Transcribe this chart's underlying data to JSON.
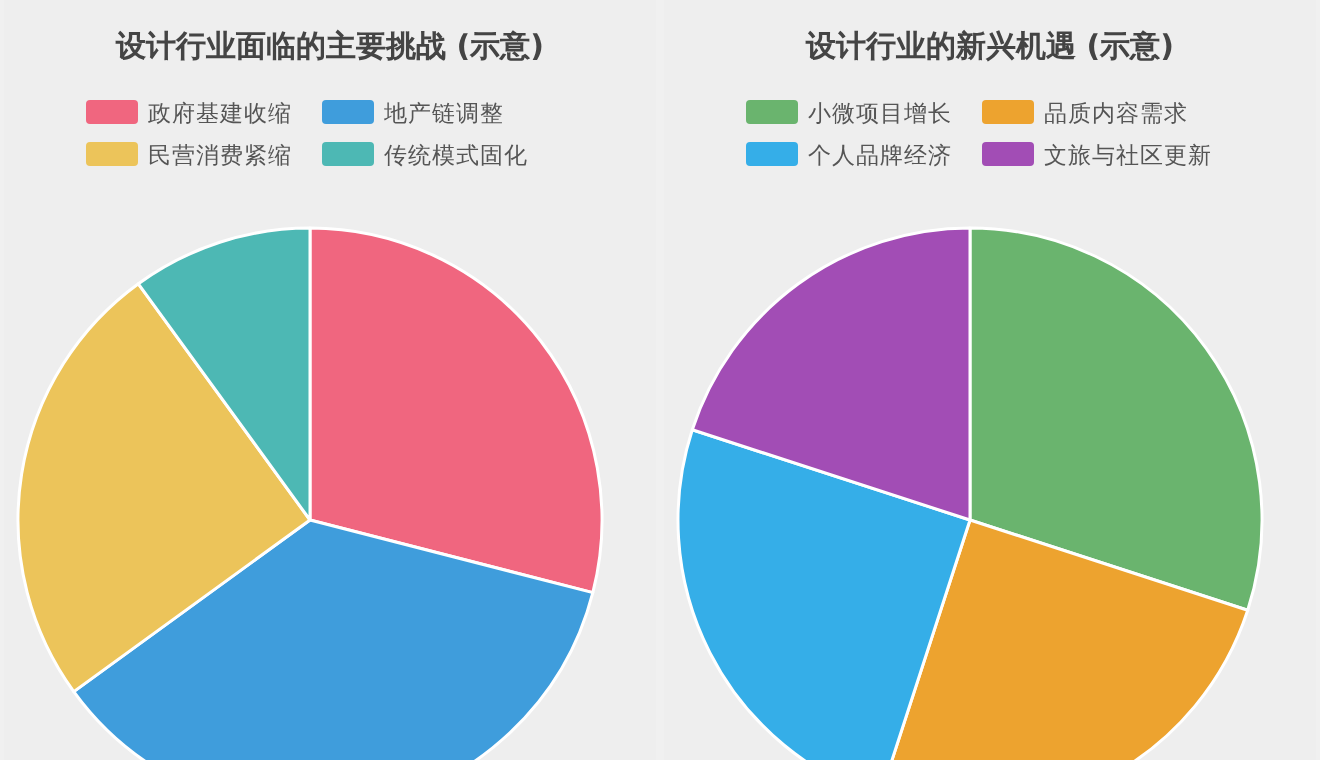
{
  "chart_data": [
    {
      "type": "pie",
      "title": "设计行业面临的主要挑战 (示意)",
      "categories": [
        "政府基建收缩",
        "地产链调整",
        "民营消费紧缩",
        "传统模式固化"
      ],
      "values": [
        29,
        36,
        25,
        10
      ],
      "colors": [
        "#f0667f",
        "#3f9ddc",
        "#ecc45a",
        "#4db8b4"
      ],
      "legend": "top"
    },
    {
      "type": "pie",
      "title": "设计行业的新兴机遇 (示意)",
      "categories": [
        "小微项目增长",
        "品质内容需求",
        "个人品牌经济",
        "文旅与社区更新"
      ],
      "values": [
        30,
        25,
        25,
        20
      ],
      "colors": [
        "#6ab46e",
        "#eda32f",
        "#35aee8",
        "#a24db5"
      ],
      "legend": "top"
    }
  ]
}
